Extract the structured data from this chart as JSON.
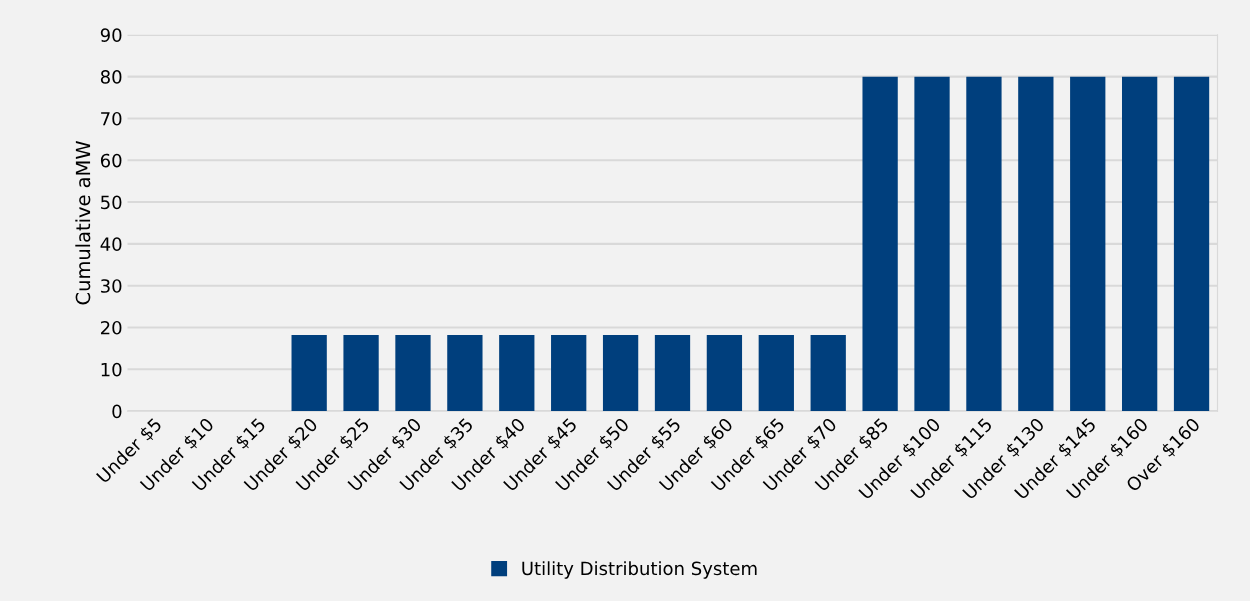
{
  "chart_data": {
    "type": "bar",
    "ylabel": "Cumulative aMW",
    "categories": [
      "Under $5",
      "Under $10",
      "Under $15",
      "Under $20",
      "Under $25",
      "Under $30",
      "Under $35",
      "Under $40",
      "Under $45",
      "Under $50",
      "Under $55",
      "Under $60",
      "Under $65",
      "Under $70",
      "Under $85",
      "Under $100",
      "Under $115",
      "Under $130",
      "Under $145",
      "Under $160",
      "Over $160"
    ],
    "series": [
      {
        "name": "Utility Distribution System",
        "color": "#003f7d",
        "values": [
          0,
          0,
          0,
          18.2,
          18.2,
          18.2,
          18.2,
          18.2,
          18.2,
          18.2,
          18.2,
          18.2,
          18.2,
          18.2,
          80,
          80,
          80,
          80,
          80,
          80,
          80
        ]
      }
    ],
    "ylim": [
      0,
      90
    ],
    "yticks": [
      0,
      10,
      20,
      30,
      40,
      50,
      60,
      70,
      80,
      90
    ],
    "grid": "y",
    "legend": "bottom"
  }
}
